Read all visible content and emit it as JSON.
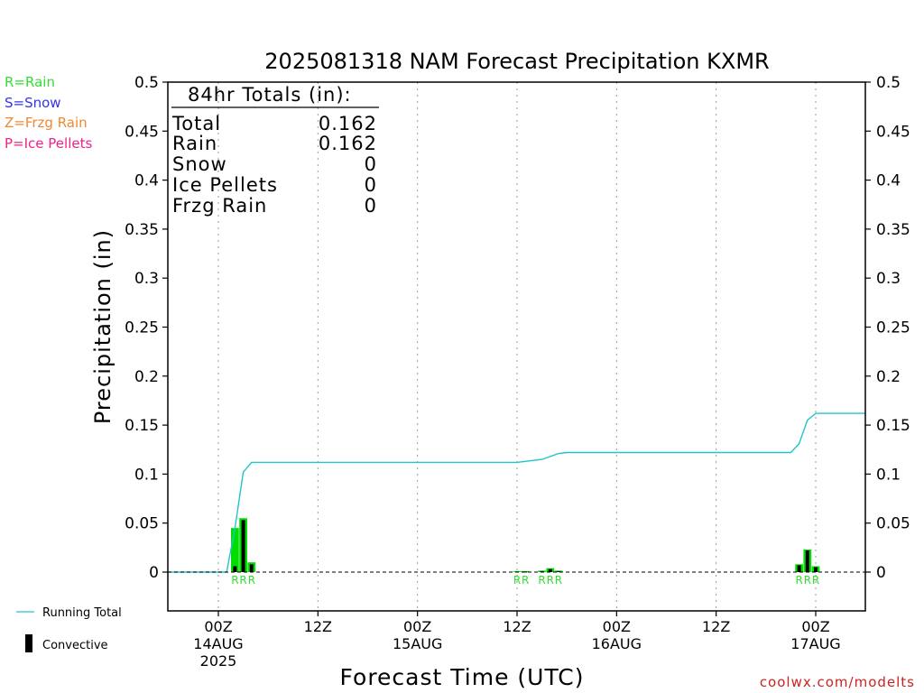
{
  "chart_data": {
    "type": "bar",
    "title": "2025081318 NAM Forecast Precipitation KXMR",
    "xlabel": "Forecast Time (UTC)",
    "ylabel": "Precipitation (in)",
    "ylim": [
      -0.04,
      0.5
    ],
    "y_ticks": [
      "0.5",
      "0.45",
      "0.4",
      "0.35",
      "0.3",
      "0.25",
      "0.2",
      "0.15",
      "0.1",
      "0.05",
      "0"
    ],
    "y_tick_values": [
      0.5,
      0.45,
      0.4,
      0.35,
      0.3,
      0.25,
      0.2,
      0.15,
      0.1,
      0.05,
      0
    ],
    "xlim_hours": [
      -5,
      84
    ],
    "x_ticks": [
      {
        "hour": 6,
        "lines": [
          "00Z",
          "14AUG",
          "2025"
        ]
      },
      {
        "hour": 18,
        "lines": [
          "12Z"
        ]
      },
      {
        "hour": 30,
        "lines": [
          "00Z",
          "15AUG"
        ]
      },
      {
        "hour": 42,
        "lines": [
          "12Z"
        ]
      },
      {
        "hour": 54,
        "lines": [
          "00Z",
          "16AUG"
        ]
      },
      {
        "hour": 66,
        "lines": [
          "12Z"
        ]
      },
      {
        "hour": 78,
        "lines": [
          "00Z",
          "17AUG"
        ]
      }
    ],
    "precip_bars": [
      {
        "hour": 8,
        "total": 0.045,
        "convective": 0.006
      },
      {
        "hour": 9,
        "total": 0.055,
        "convective": 0.053
      },
      {
        "hour": 10,
        "total": 0.01,
        "convective": 0.008
      },
      {
        "hour": 42,
        "total": 0.001,
        "convective": 0.0005
      },
      {
        "hour": 43,
        "total": 0.001,
        "convective": 0.0005
      },
      {
        "hour": 45,
        "total": 0.0015,
        "convective": 0.001
      },
      {
        "hour": 46,
        "total": 0.004,
        "convective": 0.003
      },
      {
        "hour": 47,
        "total": 0.0015,
        "convective": 0.001
      },
      {
        "hour": 76,
        "total": 0.008,
        "convective": 0.007
      },
      {
        "hour": 77,
        "total": 0.023,
        "convective": 0.022
      },
      {
        "hour": 78,
        "total": 0.006,
        "convective": 0.005
      }
    ],
    "type_labels": [
      {
        "hour": 8,
        "text": "R"
      },
      {
        "hour": 9,
        "text": "R"
      },
      {
        "hour": 10,
        "text": "R"
      },
      {
        "hour": 42,
        "text": "R"
      },
      {
        "hour": 43,
        "text": "R"
      },
      {
        "hour": 45,
        "text": "R"
      },
      {
        "hour": 46,
        "text": "R"
      },
      {
        "hour": 47,
        "text": "R"
      },
      {
        "hour": 76,
        "text": "R"
      },
      {
        "hour": 77,
        "text": "R"
      },
      {
        "hour": 78,
        "text": "R"
      }
    ],
    "running_total": {
      "hours": [
        -5,
        7,
        8,
        9,
        10,
        42,
        43,
        44,
        45,
        46,
        47,
        48,
        75,
        76,
        77,
        78,
        84
      ],
      "values": [
        0,
        0,
        0.045,
        0.102,
        0.112,
        0.112,
        0.113,
        0.114,
        0.115,
        0.118,
        0.121,
        0.122,
        0.122,
        0.131,
        0.155,
        0.162,
        0.162
      ]
    },
    "totals_box": {
      "header": "84hr Totals (in):",
      "rows": [
        {
          "label": "Total",
          "value": "0.162"
        },
        {
          "label": "Rain",
          "value": "0.162"
        },
        {
          "label": "Snow",
          "value": "0"
        },
        {
          "label": "Ice Pellets",
          "value": "0"
        },
        {
          "label": "Frzg Rain",
          "value": "0"
        }
      ]
    },
    "type_legend": [
      {
        "text": "R=Rain",
        "color": "#33dd33"
      },
      {
        "text": "S=Snow",
        "color": "#3333ee"
      },
      {
        "text": "Z=Frzg Rain",
        "color": "#ee8833"
      },
      {
        "text": "P=Ice Pellets",
        "color": "#ee2288"
      }
    ],
    "series_legend": {
      "running_total": "Running Total",
      "convective": "Convective"
    },
    "colors": {
      "rain": "#00dd00",
      "convective": "#000000",
      "running_total": "#22c4cc",
      "credit": "#cc2222"
    },
    "grid": "vertical-dotted"
  },
  "credit": "coolwx.com/modelts"
}
